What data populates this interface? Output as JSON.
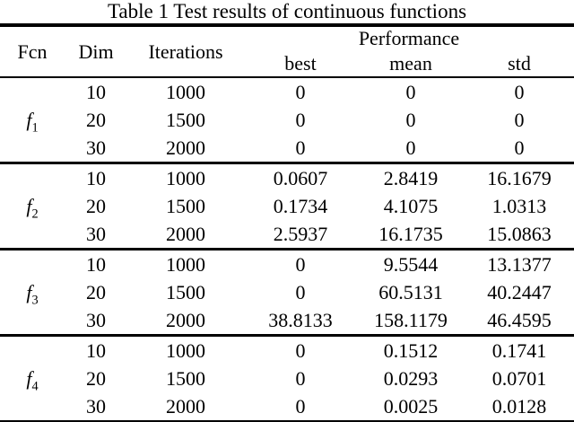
{
  "title": "Table 1 Test results of continuous functions",
  "header": {
    "fcn": "Fcn",
    "dim": "Dim",
    "iterations": "Iterations",
    "performance": "Performance",
    "best": "best",
    "mean": "mean",
    "std": "std"
  },
  "groups": [
    {
      "fcn_base": "f",
      "fcn_sub": "1",
      "rows": [
        {
          "dim": "10",
          "iterations": "1000",
          "best": "0",
          "mean": "0",
          "std": "0"
        },
        {
          "dim": "20",
          "iterations": "1500",
          "best": "0",
          "mean": "0",
          "std": "0"
        },
        {
          "dim": "30",
          "iterations": "2000",
          "best": "0",
          "mean": "0",
          "std": "0"
        }
      ]
    },
    {
      "fcn_base": "f",
      "fcn_sub": "2",
      "rows": [
        {
          "dim": "10",
          "iterations": "1000",
          "best": "0.0607",
          "mean": "2.8419",
          "std": "16.1679"
        },
        {
          "dim": "20",
          "iterations": "1500",
          "best": "0.1734",
          "mean": "4.1075",
          "std": "1.0313"
        },
        {
          "dim": "30",
          "iterations": "2000",
          "best": "2.5937",
          "mean": "16.1735",
          "std": "15.0863"
        }
      ]
    },
    {
      "fcn_base": "f",
      "fcn_sub": "3",
      "rows": [
        {
          "dim": "10",
          "iterations": "1000",
          "best": "0",
          "mean": "9.5544",
          "std": "13.1377"
        },
        {
          "dim": "20",
          "iterations": "1500",
          "best": "0",
          "mean": "60.5131",
          "std": "40.2447"
        },
        {
          "dim": "30",
          "iterations": "2000",
          "best": "38.8133",
          "mean": "158.1179",
          "std": "46.4595"
        }
      ]
    },
    {
      "fcn_base": "f",
      "fcn_sub": "4",
      "rows": [
        {
          "dim": "10",
          "iterations": "1000",
          "best": "0",
          "mean": "0.1512",
          "std": "0.1741"
        },
        {
          "dim": "20",
          "iterations": "1500",
          "best": "0",
          "mean": "0.0293",
          "std": "0.0701"
        },
        {
          "dim": "30",
          "iterations": "2000",
          "best": "0",
          "mean": "0.0025",
          "std": "0.0128"
        }
      ]
    }
  ],
  "colors": {
    "text": "#000000",
    "background": "#ffffff",
    "rule": "#000000"
  }
}
